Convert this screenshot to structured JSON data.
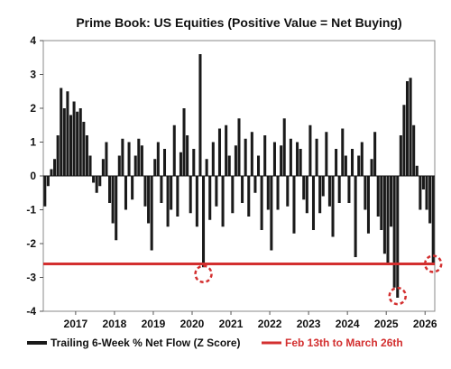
{
  "chart_data": {
    "type": "bar",
    "title": "Prime Book: US Equities (Positive Value = Net Buying)",
    "xlabel": "",
    "ylabel": "",
    "x_range": [
      "2016-03",
      "2026-04"
    ],
    "ylim": [
      -4,
      4
    ],
    "y_ticks": [
      -4,
      -3,
      -2,
      -1,
      0,
      1,
      2,
      3,
      4
    ],
    "x_ticks": [
      "2017",
      "2018",
      "2019",
      "2020",
      "2021",
      "2022",
      "2023",
      "2024",
      "2025",
      "2026"
    ],
    "grid": false,
    "legend_position": "bottom",
    "series": [
      {
        "name": "Trailing 6-Week % Net Flow (Z Score)",
        "color": "#1a1a1a",
        "points": [
          [
            "2016-03",
            -0.9
          ],
          [
            "2016-04",
            -0.3
          ],
          [
            "2016-05",
            0.2
          ],
          [
            "2016-06",
            0.5
          ],
          [
            "2016-07",
            1.2
          ],
          [
            "2016-08",
            2.6
          ],
          [
            "2016-09",
            2.0
          ],
          [
            "2016-10",
            2.5
          ],
          [
            "2016-11",
            1.8
          ],
          [
            "2016-12",
            2.2
          ],
          [
            "2017-01",
            1.9
          ],
          [
            "2017-02",
            2.0
          ],
          [
            "2017-03",
            1.6
          ],
          [
            "2017-04",
            1.2
          ],
          [
            "2017-05",
            0.6
          ],
          [
            "2017-06",
            -0.2
          ],
          [
            "2017-07",
            -0.5
          ],
          [
            "2017-08",
            -0.3
          ],
          [
            "2017-09",
            0.5
          ],
          [
            "2017-10",
            1.0
          ],
          [
            "2017-11",
            -0.8
          ],
          [
            "2017-12",
            -1.4
          ],
          [
            "2018-01",
            -1.9
          ],
          [
            "2018-02",
            0.6
          ],
          [
            "2018-03",
            1.1
          ],
          [
            "2018-04",
            -1.0
          ],
          [
            "2018-05",
            1.0
          ],
          [
            "2018-06",
            -0.7
          ],
          [
            "2018-07",
            0.6
          ],
          [
            "2018-08",
            1.1
          ],
          [
            "2018-09",
            0.9
          ],
          [
            "2018-10",
            -0.9
          ],
          [
            "2018-11",
            -1.4
          ],
          [
            "2018-12",
            -2.2
          ],
          [
            "2019-01",
            0.5
          ],
          [
            "2019-02",
            1.0
          ],
          [
            "2019-03",
            -0.8
          ],
          [
            "2019-04",
            0.8
          ],
          [
            "2019-05",
            -1.5
          ],
          [
            "2019-06",
            -1.0
          ],
          [
            "2019-07",
            1.5
          ],
          [
            "2019-08",
            -1.2
          ],
          [
            "2019-09",
            0.7
          ],
          [
            "2019-10",
            2.0
          ],
          [
            "2019-11",
            1.2
          ],
          [
            "2019-12",
            -1.1
          ],
          [
            "2020-01",
            0.8
          ],
          [
            "2020-02",
            -1.5
          ],
          [
            "2020-03",
            3.6
          ],
          [
            "2020-04",
            -2.7
          ],
          [
            "2020-05",
            0.5
          ],
          [
            "2020-06",
            -1.3
          ],
          [
            "2020-07",
            1.0
          ],
          [
            "2020-08",
            -0.9
          ],
          [
            "2020-09",
            1.4
          ],
          [
            "2020-10",
            -1.5
          ],
          [
            "2020-11",
            1.5
          ],
          [
            "2020-12",
            0.6
          ],
          [
            "2021-01",
            -1.1
          ],
          [
            "2021-02",
            0.9
          ],
          [
            "2021-03",
            1.7
          ],
          [
            "2021-04",
            -0.8
          ],
          [
            "2021-05",
            1.1
          ],
          [
            "2021-06",
            -1.2
          ],
          [
            "2021-07",
            1.3
          ],
          [
            "2021-08",
            -0.5
          ],
          [
            "2021-09",
            0.6
          ],
          [
            "2021-10",
            -1.6
          ],
          [
            "2021-11",
            1.2
          ],
          [
            "2021-12",
            -1.0
          ],
          [
            "2022-01",
            -2.2
          ],
          [
            "2022-02",
            1.0
          ],
          [
            "2022-03",
            -1.0
          ],
          [
            "2022-04",
            0.9
          ],
          [
            "2022-05",
            1.7
          ],
          [
            "2022-06",
            -0.9
          ],
          [
            "2022-07",
            1.1
          ],
          [
            "2022-08",
            -1.7
          ],
          [
            "2022-09",
            1.0
          ],
          [
            "2022-10",
            0.8
          ],
          [
            "2022-11",
            -0.7
          ],
          [
            "2022-12",
            -1.1
          ],
          [
            "2023-01",
            1.5
          ],
          [
            "2023-02",
            -1.6
          ],
          [
            "2023-03",
            1.1
          ],
          [
            "2023-04",
            -1.1
          ],
          [
            "2023-05",
            -0.6
          ],
          [
            "2023-06",
            1.3
          ],
          [
            "2023-07",
            -0.9
          ],
          [
            "2023-08",
            -1.8
          ],
          [
            "2023-09",
            0.8
          ],
          [
            "2023-10",
            -0.8
          ],
          [
            "2023-11",
            1.4
          ],
          [
            "2023-12",
            0.6
          ],
          [
            "2024-01",
            -0.8
          ],
          [
            "2024-02",
            0.8
          ],
          [
            "2024-03",
            -2.4
          ],
          [
            "2024-04",
            0.6
          ],
          [
            "2024-05",
            1.0
          ],
          [
            "2024-06",
            -1.0
          ],
          [
            "2024-07",
            -1.7
          ],
          [
            "2024-08",
            0.5
          ],
          [
            "2024-09",
            1.3
          ],
          [
            "2024-10",
            -1.2
          ],
          [
            "2024-11",
            -1.6
          ],
          [
            "2024-12",
            -2.3
          ],
          [
            "2025-01",
            -2.6
          ],
          [
            "2025-02",
            -1.5
          ],
          [
            "2025-03",
            -3.3
          ],
          [
            "2025-04",
            -3.6
          ],
          [
            "2025-05",
            1.2
          ],
          [
            "2025-06",
            2.1
          ],
          [
            "2025-07",
            2.8
          ],
          [
            "2025-08",
            2.9
          ],
          [
            "2025-09",
            1.5
          ],
          [
            "2025-10",
            0.3
          ],
          [
            "2025-11",
            -1.0
          ],
          [
            "2025-12",
            -0.4
          ],
          [
            "2026-01",
            -1.0
          ],
          [
            "2026-02",
            -1.4
          ],
          [
            "2026-03",
            -2.6
          ]
        ]
      },
      {
        "name": "Feb 13th to March 26th",
        "color": "#d32f2f",
        "type": "hline",
        "y": -2.6
      }
    ],
    "annotations": [
      {
        "shape": "dashed-circle",
        "x": "2020-04",
        "y": -2.9,
        "color": "#d32f2f"
      },
      {
        "shape": "dashed-circle",
        "x": "2025-04",
        "y": -3.55,
        "color": "#d32f2f"
      },
      {
        "shape": "dashed-circle",
        "x": "2026-03",
        "y": -2.6,
        "color": "#d32f2f"
      }
    ]
  }
}
